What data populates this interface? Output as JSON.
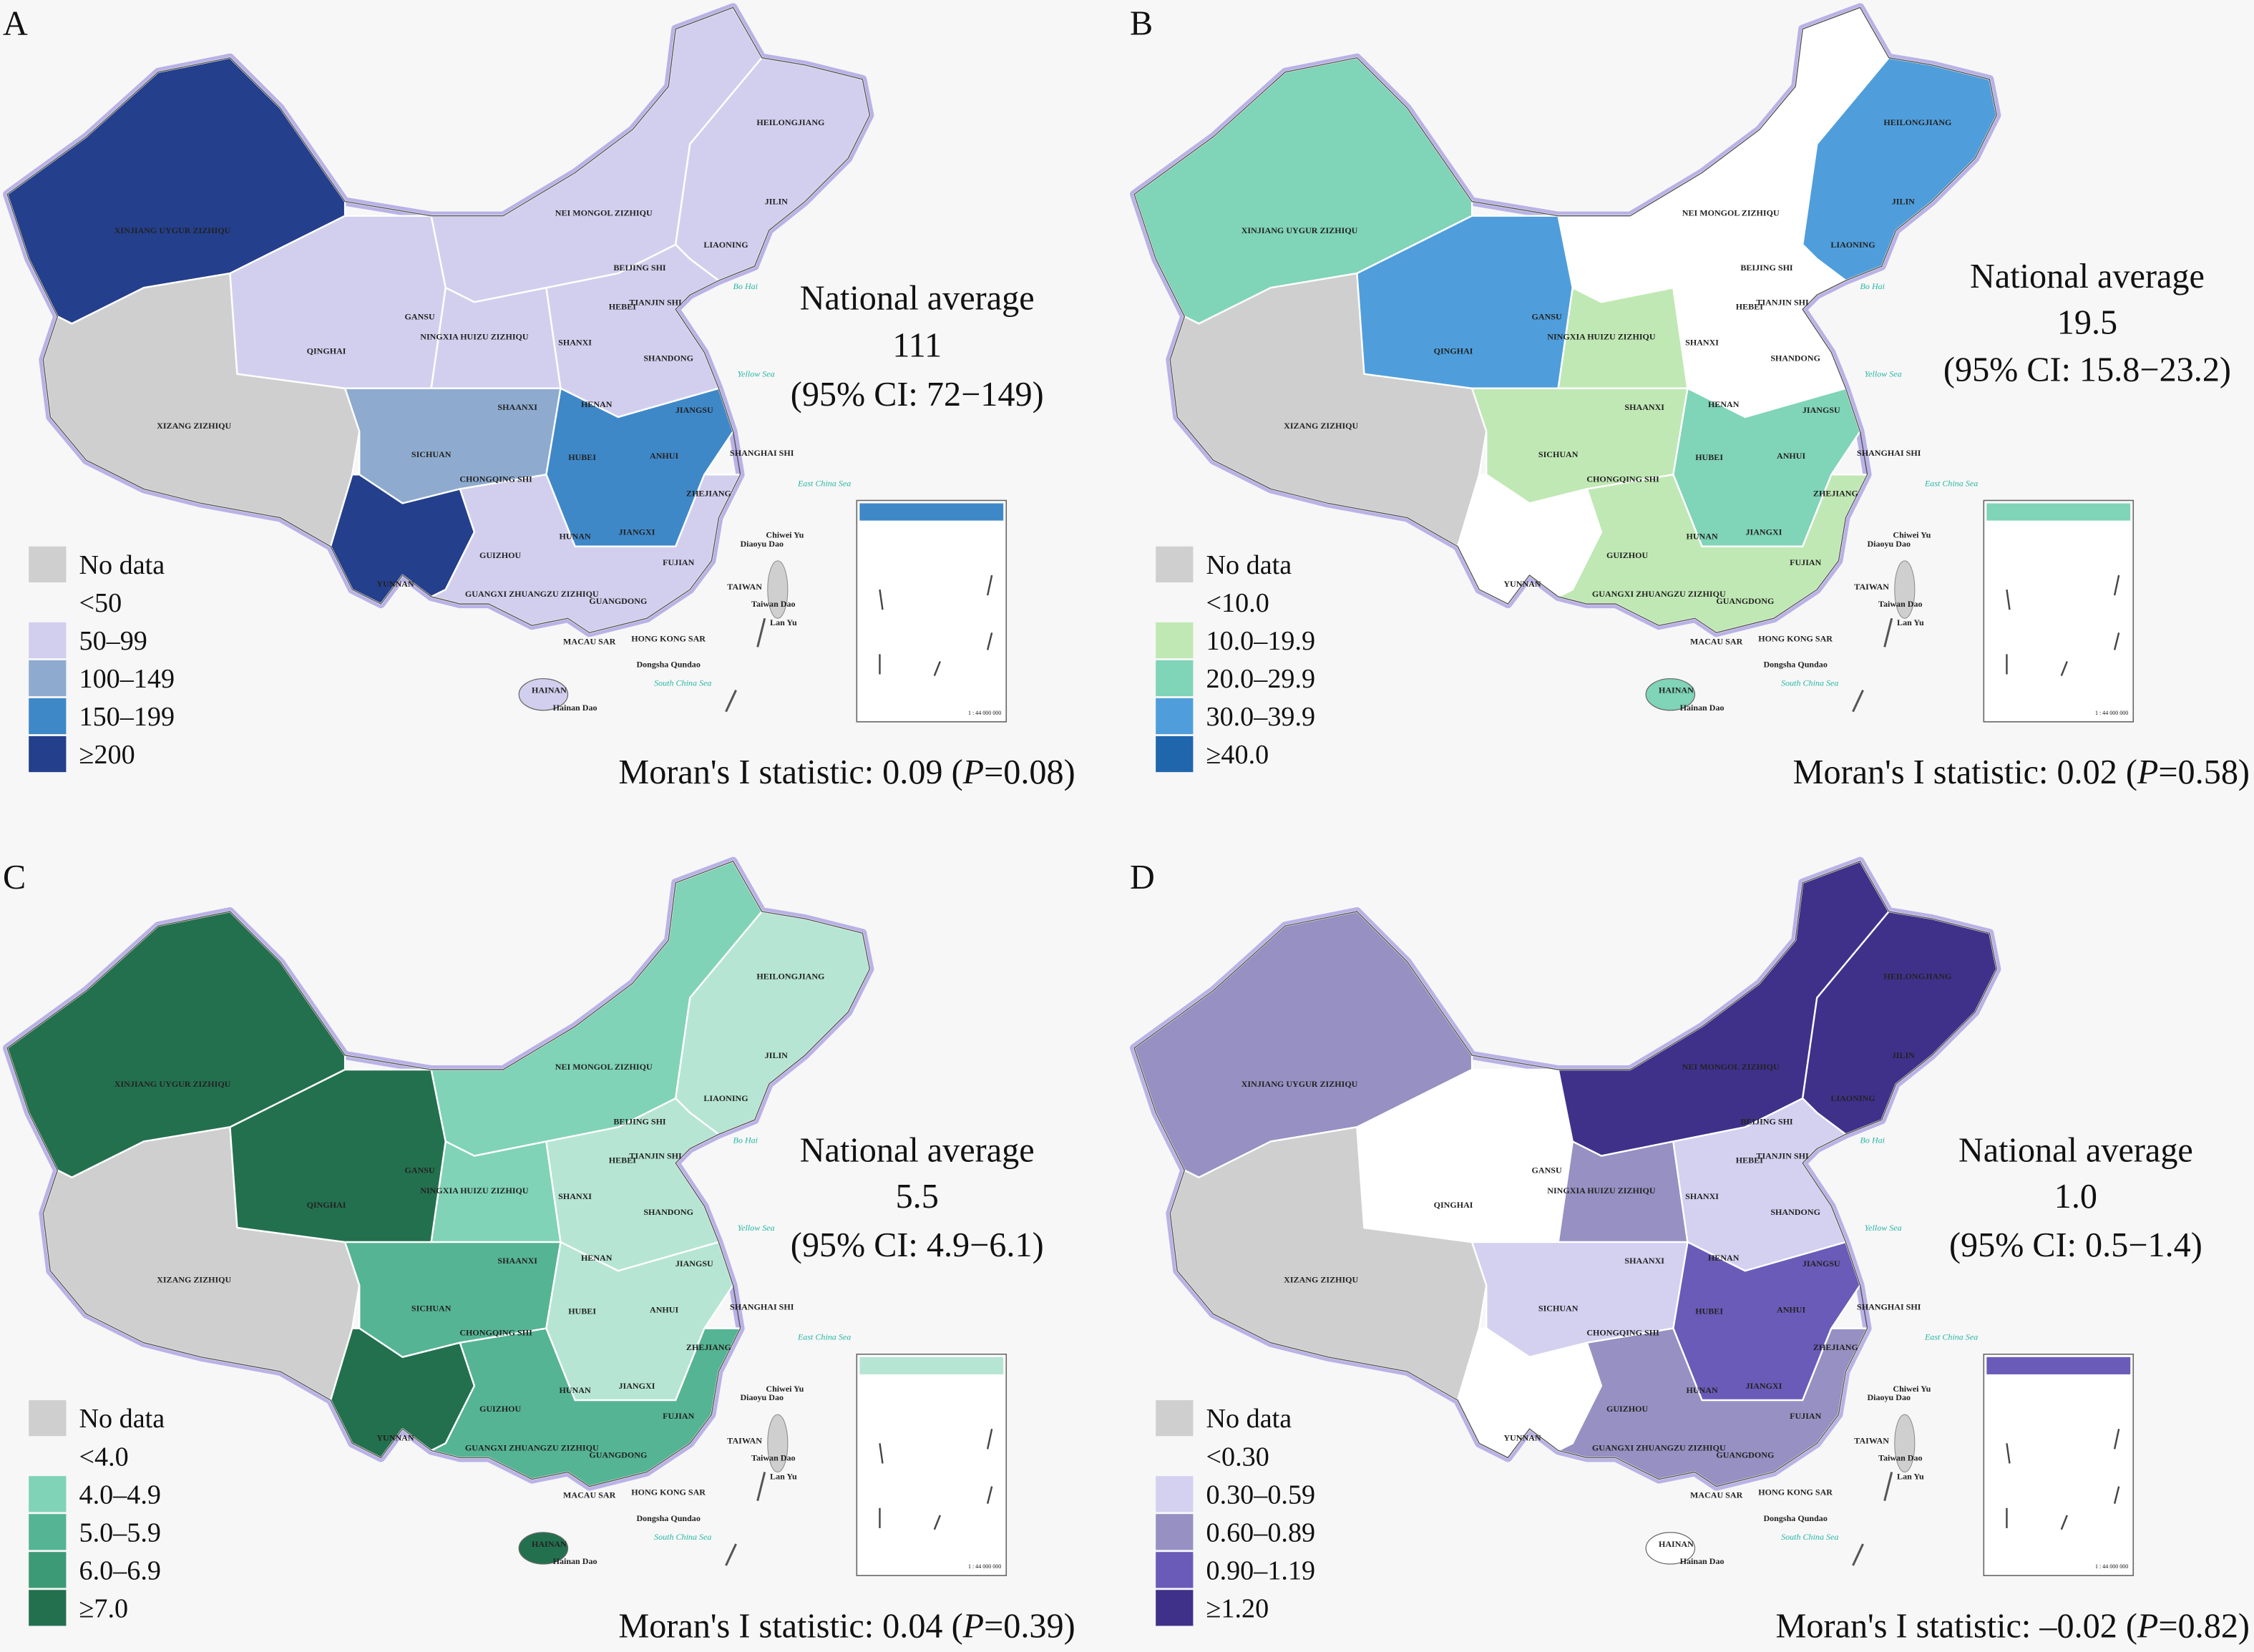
{
  "colors": {
    "no_data": "#cfcfcf",
    "white": "#ffffff",
    "background": "#f7f7f7",
    "border_glow": "#b9b2e6"
  },
  "panels": [
    {
      "letter": "A",
      "national_average_label": "National average",
      "national_average_value": "111",
      "ci": "(95% CI: 72−149)",
      "moran_prefix": "Moran's I statistic: 0.09 (",
      "moran_p_italic": "P",
      "moran_suffix": "=0.08)",
      "legend": [
        {
          "label": "No data",
          "color": "#cfcfcf"
        },
        {
          "label": "<50",
          "color": "#ffffff"
        },
        {
          "label": "50–99",
          "color": "#d2cfee"
        },
        {
          "label": "100–149",
          "color": "#8eabcf"
        },
        {
          "label": "150–199",
          "color": "#3f88c8"
        },
        {
          "label": "≥200",
          "color": "#243f8c"
        }
      ],
      "regions": {
        "xinjiang": 5,
        "xizang": 0,
        "qinghai": 2,
        "north": 2,
        "northeast": 2,
        "corridor": 2,
        "plain": 2,
        "sichuan": 3,
        "central": 4,
        "yunnan": 5,
        "south": 2,
        "hainan": 2
      }
    },
    {
      "letter": "B",
      "national_average_label": "National average",
      "national_average_value": "19.5",
      "ci": "(95% CI: 15.8−23.2)",
      "moran_prefix": "Moran's I statistic: 0.02 (",
      "moran_p_italic": "P",
      "moran_suffix": "=0.58)",
      "legend": [
        {
          "label": "No data",
          "color": "#cfcfcf"
        },
        {
          "label": "<10.0",
          "color": "#ffffff"
        },
        {
          "label": "10.0–19.9",
          "color": "#c0e8b4"
        },
        {
          "label": "20.0–29.9",
          "color": "#80d4b8"
        },
        {
          "label": "30.0–39.9",
          "color": "#4f9edb"
        },
        {
          "label": "≥40.0",
          "color": "#2066ad"
        }
      ],
      "regions": {
        "xinjiang": 3,
        "xizang": 0,
        "qinghai": 4,
        "north": 1,
        "northeast": 4,
        "corridor": 2,
        "plain": 1,
        "sichuan": 2,
        "central": 3,
        "yunnan": 1,
        "south": 2,
        "hainan": 3
      }
    },
    {
      "letter": "C",
      "national_average_label": "National average",
      "national_average_value": "5.5",
      "ci": "(95% CI: 4.9−6.1)",
      "moran_prefix": "Moran's I statistic: 0.04 (",
      "moran_p_italic": "P",
      "moran_suffix": "=0.39)",
      "legend": [
        {
          "label": "No data",
          "color": "#cfcfcf"
        },
        {
          "label": "<4.0",
          "color": "#b6e5d4"
        },
        {
          "label": "4.0–4.9",
          "color": "#80d3b6"
        },
        {
          "label": "5.0–5.9",
          "color": "#55b493"
        },
        {
          "label": "6.0–6.9",
          "color": "#3c9a76"
        },
        {
          "label": "≥7.0",
          "color": "#23704f"
        }
      ],
      "regions": {
        "xinjiang": 5,
        "xizang": 0,
        "qinghai": 5,
        "north": 2,
        "northeast": 1,
        "corridor": 2,
        "plain": 1,
        "sichuan": 3,
        "central": 1,
        "yunnan": 5,
        "south": 3,
        "hainan": 5
      }
    },
    {
      "letter": "D",
      "national_average_label": "National average",
      "national_average_value": "1.0",
      "ci": "(95% CI: 0.5−1.4)",
      "moran_prefix": "Moran's I statistic: –0.02 (",
      "moran_p_italic": "P",
      "moran_suffix": "=0.82)",
      "legend": [
        {
          "label": "No data",
          "color": "#cfcfcf"
        },
        {
          "label": "<0.30",
          "color": "#ffffff"
        },
        {
          "label": "0.30–0.59",
          "color": "#d3d0f0"
        },
        {
          "label": "0.60–0.89",
          "color": "#9790c2"
        },
        {
          "label": "0.90–1.19",
          "color": "#6a5bb8"
        },
        {
          "label": "≥1.20",
          "color": "#3f318a"
        }
      ],
      "regions": {
        "xinjiang": 3,
        "xizang": 0,
        "qinghai": 1,
        "north": 5,
        "northeast": 5,
        "corridor": 3,
        "plain": 2,
        "sichuan": 2,
        "central": 4,
        "yunnan": 1,
        "south": 3,
        "hainan": 1
      }
    }
  ],
  "map_labels": [
    "XINJIANG UYGUR ZIZHIQU",
    "XIZANG ZIZHIQU",
    "QINGHAI",
    "GANSU",
    "NEI MONGOL ZIZHIQU",
    "HEILONGJIANG",
    "JILIN",
    "LIAONING",
    "BEIJING SHI",
    "TIANJIN SHI",
    "HEBEI",
    "SHANXI",
    "SHANDONG",
    "NINGXIA HUIZU ZIZHIQU",
    "SHAANXI",
    "HENAN",
    "JIANGSU",
    "ANHUI",
    "SHANGHAI SHI",
    "HUBEI",
    "SICHUAN",
    "CHONGQING SHI",
    "ZHEJIANG",
    "HUNAN",
    "JIANGXI",
    "GUIZHOU",
    "YUNNAN",
    "FUJIAN",
    "GUANGXI ZHUANGZU ZIZHIQU",
    "GUANGDONG",
    "TAIWAN",
    "HONG KONG SAR",
    "MACAU SAR",
    "HAINAN",
    "Hainan Dao",
    "Taiwan Dao",
    "Diaoyu Dao",
    "Chiwei Yu",
    "Dongsha Qundao",
    "Lan Yu"
  ],
  "sea_labels": [
    "Bo Hai",
    "Yellow Sea",
    "East China Sea",
    "South China Sea"
  ],
  "inset": {
    "scale_text": "1 : 44 000 000"
  }
}
